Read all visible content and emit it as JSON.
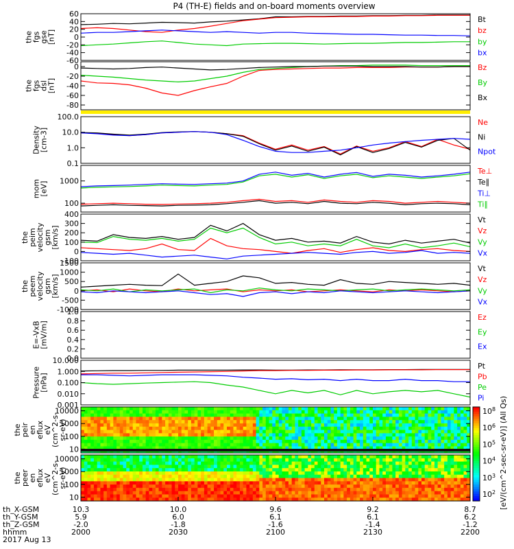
{
  "title": "P4 (TH-E) fields and on-board moments overview",
  "date_label": "2017 Aug 13",
  "footer": {
    "row_labels": [
      "th_X-GSM",
      "th_Y-GSM",
      "th_Z-GSM",
      "hhmm"
    ],
    "columns": [
      {
        "x": "10.3",
        "y": "5.9",
        "z": "-2.0",
        "t": "2000"
      },
      {
        "x": "10.0",
        "y": "6.0",
        "z": "-1.8",
        "t": "2030"
      },
      {
        "x": "9.6",
        "y": "6.1",
        "z": "-1.6",
        "t": "2100"
      },
      {
        "x": "9.2",
        "y": "6.1",
        "z": "-1.4",
        "t": "2130"
      },
      {
        "x": "8.7",
        "y": "6.2",
        "z": "-1.2",
        "t": "2200"
      }
    ]
  },
  "colorbar": {
    "label": "[eV/(cm^2-sec-sr-eV)] (All Qs)",
    "ticks": [
      "10^8",
      "10^6",
      "10^5",
      "10^4",
      "10^3",
      "10^2"
    ]
  },
  "chart_data": [
    {
      "id": "fgs_gse",
      "type": "line",
      "ylabel": [
        "the",
        "fgs",
        "gse",
        "[nT]"
      ],
      "ylim": [
        -60,
        60
      ],
      "yticks": [
        "60",
        "40",
        "20",
        "0",
        "-20",
        "-40",
        "-60"
      ],
      "series": [
        {
          "name": "Bt",
          "color": "#000000",
          "values": [
            32,
            33,
            35,
            34,
            36,
            38,
            37,
            36,
            39,
            41,
            44,
            47,
            52,
            52,
            53,
            53,
            54,
            54,
            55,
            55,
            56,
            56,
            57,
            57,
            57
          ]
        },
        {
          "name": "bz",
          "color": "#ff0000",
          "values": [
            22,
            24,
            22,
            18,
            14,
            12,
            18,
            22,
            28,
            35,
            42,
            46,
            50,
            51,
            52,
            52,
            53,
            53,
            54,
            54,
            55,
            55,
            56,
            56,
            56
          ]
        },
        {
          "name": "by",
          "color": "#00cc00",
          "values": [
            -22,
            -20,
            -18,
            -15,
            -12,
            -10,
            -14,
            -18,
            -20,
            -22,
            -18,
            -17,
            -16,
            -16,
            -17,
            -18,
            -17,
            -16,
            -16,
            -15,
            -14,
            -14,
            -13,
            -12,
            -12
          ]
        },
        {
          "name": "bx",
          "color": "#0000ff",
          "values": [
            10,
            12,
            12,
            14,
            16,
            18,
            16,
            14,
            12,
            14,
            12,
            10,
            12,
            12,
            10,
            9,
            8,
            7,
            7,
            6,
            5,
            5,
            4,
            4,
            3
          ]
        }
      ]
    },
    {
      "id": "fgs_gsm",
      "type": "line",
      "ylabel": [
        "the",
        "fgs",
        "dsl",
        "[nT]"
      ],
      "ylim": [
        -90,
        10
      ],
      "yticks": [
        "0",
        "-20",
        "-40",
        "-60",
        "-80"
      ],
      "series": [
        {
          "name": "Bz",
          "color": "#ff0000",
          "values": [
            -30,
            -34,
            -35,
            -38,
            -45,
            -55,
            -60,
            -50,
            -42,
            -35,
            -20,
            -8,
            -6,
            -5,
            -4,
            -3,
            -3,
            -2,
            -2,
            -2,
            -1,
            -1,
            -1,
            0,
            0
          ]
        },
        {
          "name": "By",
          "color": "#00cc00",
          "values": [
            -18,
            -20,
            -22,
            -25,
            -28,
            -30,
            -32,
            -30,
            -25,
            -20,
            -12,
            -6,
            -4,
            -2,
            0,
            1,
            2,
            2,
            3,
            3,
            3,
            2,
            2,
            2,
            2
          ]
        },
        {
          "name": "Bx",
          "color": "#000000",
          "values": [
            -3,
            -4,
            -5,
            -4,
            -2,
            -1,
            -3,
            -5,
            -7,
            -6,
            -4,
            -2,
            -1,
            0,
            0,
            1,
            1,
            1,
            0,
            0,
            0,
            -1,
            -1,
            0,
            0
          ]
        }
      ]
    },
    {
      "id": "density",
      "type": "line",
      "scale": "log",
      "ylabel": [
        "Density",
        "[cm-3]"
      ],
      "ylim": [
        0.1,
        100
      ],
      "yticks": [
        "100.0",
        "10.0",
        "1.0",
        "0.1"
      ],
      "series": [
        {
          "name": "Ne",
          "color": "#ff0000",
          "values": [
            9,
            8.5,
            7,
            6,
            7,
            9,
            10,
            11,
            10,
            8,
            6,
            2,
            0.8,
            1.5,
            0.7,
            1.2,
            0.4,
            1.3,
            0.6,
            1.0,
            2.5,
            1.2,
            3.5,
            1.5,
            0.8
          ]
        },
        {
          "name": "Ni",
          "color": "#000000",
          "values": [
            9.5,
            9,
            7.5,
            6.5,
            7.5,
            9.5,
            10.5,
            11,
            10,
            8,
            5.5,
            1.8,
            0.7,
            1.3,
            0.6,
            1.1,
            0.35,
            1.2,
            0.5,
            0.9,
            2.2,
            1.1,
            3,
            4,
            0.7
          ]
        },
        {
          "name": "Npot",
          "color": "#0000ff",
          "values": [
            9,
            8,
            6.5,
            6,
            7,
            9,
            10,
            11,
            10,
            7,
            3,
            1.2,
            0.6,
            0.5,
            0.5,
            0.6,
            0.7,
            1.0,
            1.5,
            2,
            2.5,
            3,
            3.5,
            4,
            3.5
          ]
        }
      ]
    },
    {
      "id": "temperature",
      "type": "line",
      "scale": "log",
      "ylabel": [
        "mom",
        "[eV]"
      ],
      "ylim": [
        40,
        5000
      ],
      "yticks": [
        "1000",
        "100"
      ],
      "series": [
        {
          "name": "Te⊥",
          "color": "#ff0000",
          "values": [
            90,
            95,
            100,
            95,
            90,
            88,
            92,
            95,
            100,
            110,
            130,
            150,
            120,
            130,
            110,
            140,
            120,
            110,
            130,
            120,
            100,
            110,
            120,
            110,
            100
          ]
        },
        {
          "name": "Te∥",
          "color": "#000000",
          "values": [
            75,
            80,
            85,
            80,
            78,
            75,
            80,
            82,
            85,
            95,
            110,
            130,
            100,
            110,
            95,
            120,
            100,
            95,
            110,
            100,
            85,
            95,
            100,
            95,
            85
          ]
        },
        {
          "name": "Ti⊥",
          "color": "#0000ff",
          "values": [
            550,
            600,
            620,
            650,
            700,
            750,
            720,
            700,
            750,
            800,
            1000,
            2000,
            2500,
            1800,
            2200,
            1500,
            2000,
            2400,
            1600,
            2000,
            1800,
            1500,
            1700,
            2000,
            2500
          ]
        },
        {
          "name": "Ti∥",
          "color": "#00cc00",
          "values": [
            480,
            520,
            540,
            560,
            600,
            650,
            620,
            600,
            650,
            700,
            900,
            1700,
            2000,
            1500,
            1900,
            1300,
            1700,
            2000,
            1400,
            1700,
            1500,
            1300,
            1500,
            1700,
            2100
          ]
        }
      ]
    },
    {
      "id": "peim_velocity",
      "type": "line",
      "ylabel": [
        "the",
        "peim",
        "velocity",
        "gsm",
        "[km/s]"
      ],
      "ylim": [
        -100,
        400
      ],
      "yticks": [
        "400",
        "300",
        "200",
        "100",
        "0",
        "-100"
      ],
      "series": [
        {
          "name": "Vt",
          "color": "#000000",
          "values": [
            120,
            110,
            180,
            150,
            140,
            160,
            130,
            150,
            280,
            220,
            300,
            180,
            120,
            140,
            100,
            110,
            90,
            160,
            100,
            80,
            120,
            90,
            110,
            130,
            90
          ]
        },
        {
          "name": "Vz",
          "color": "#ff0000",
          "values": [
            40,
            30,
            20,
            10,
            30,
            80,
            20,
            10,
            140,
            60,
            30,
            20,
            0,
            -20,
            10,
            30,
            -10,
            20,
            40,
            10,
            0,
            20,
            30,
            10,
            0
          ]
        },
        {
          "name": "Vy",
          "color": "#00cc00",
          "values": [
            100,
            95,
            160,
            130,
            120,
            140,
            110,
            130,
            250,
            200,
            250,
            150,
            80,
            100,
            60,
            80,
            60,
            130,
            60,
            40,
            80,
            40,
            60,
            90,
            50
          ]
        },
        {
          "name": "Vx",
          "color": "#0000ff",
          "values": [
            -10,
            -20,
            -30,
            -20,
            -40,
            -60,
            -50,
            -40,
            -60,
            -80,
            -50,
            -40,
            -30,
            -20,
            -10,
            -20,
            -30,
            -10,
            0,
            -20,
            -10,
            10,
            -20,
            -10,
            -20
          ]
        }
      ]
    },
    {
      "id": "peem_velocity",
      "type": "line",
      "ylabel": [
        "the",
        "peem",
        "velocity",
        "gsm",
        "[km/s]"
      ],
      "ylim": [
        -1000,
        1500
      ],
      "yticks": [
        "1500",
        "1000",
        "500",
        "0",
        "-500",
        "-1000"
      ],
      "series": [
        {
          "name": "Vt",
          "color": "#000000",
          "values": [
            200,
            250,
            300,
            350,
            300,
            280,
            900,
            300,
            400,
            500,
            800,
            700,
            400,
            450,
            350,
            300,
            600,
            400,
            350,
            500,
            450,
            400,
            350,
            400,
            300
          ]
        },
        {
          "name": "Vz",
          "color": "#ff0000",
          "values": [
            0,
            50,
            -50,
            100,
            0,
            -50,
            100,
            0,
            50,
            100,
            -50,
            50,
            0,
            50,
            -50,
            0,
            50,
            0,
            -50,
            50,
            0,
            50,
            0,
            -50,
            0
          ]
        },
        {
          "name": "Vy",
          "color": "#00cc00",
          "values": [
            50,
            0,
            100,
            -50,
            50,
            0,
            50,
            100,
            -100,
            50,
            0,
            150,
            50,
            0,
            100,
            50,
            0,
            50,
            100,
            0,
            50,
            100,
            50,
            0,
            50
          ]
        },
        {
          "name": "Vx",
          "color": "#0000ff",
          "values": [
            -50,
            -100,
            0,
            -50,
            -100,
            -50,
            0,
            -100,
            -200,
            -150,
            -300,
            -100,
            -50,
            -150,
            -50,
            -100,
            0,
            -50,
            -100,
            -50,
            0,
            -50,
            -100,
            -50,
            0
          ]
        }
      ]
    },
    {
      "id": "efield",
      "type": "line",
      "ylabel": [
        "E=-VxB",
        "[mV/m]"
      ],
      "ylim": [
        0,
        1
      ],
      "yticks": [
        "1.0",
        "0.8",
        "0.6",
        "0.4",
        "0.2",
        "0.0"
      ],
      "series": [
        {
          "name": "Ez",
          "color": "#ff0000",
          "values": []
        },
        {
          "name": "Ey",
          "color": "#00cc00",
          "values": []
        },
        {
          "name": "Ex",
          "color": "#0000ff",
          "values": []
        }
      ]
    },
    {
      "id": "pressure",
      "type": "line",
      "scale": "log",
      "ylabel": [
        "Pressure",
        "[nPa]"
      ],
      "ylim": [
        0.001,
        10
      ],
      "yticks": [
        "10.000",
        "1.000",
        "0.100",
        "0.010",
        "0.001"
      ],
      "series": [
        {
          "name": "Pt",
          "color": "#000000",
          "values": [
            1.1,
            1.15,
            1.2,
            1.2,
            1.25,
            1.25,
            1.3,
            1.3,
            1.3,
            1.3,
            1.35,
            1.35,
            1.3,
            1.3,
            1.35,
            1.35,
            1.4,
            1.4,
            1.4,
            1.45,
            1.45,
            1.5,
            1.5,
            1.5,
            1.5
          ]
        },
        {
          "name": "Pb",
          "color": "#ff0000",
          "values": [
            0.6,
            0.65,
            0.7,
            0.7,
            0.75,
            0.8,
            0.85,
            0.9,
            0.95,
            1.0,
            1.1,
            1.2,
            1.2,
            1.25,
            1.25,
            1.3,
            1.3,
            1.35,
            1.35,
            1.4,
            1.4,
            1.4,
            1.45,
            1.45,
            1.45
          ]
        },
        {
          "name": "Pe",
          "color": "#00cc00",
          "values": [
            0.1,
            0.08,
            0.07,
            0.08,
            0.09,
            0.1,
            0.11,
            0.12,
            0.1,
            0.06,
            0.04,
            0.02,
            0.01,
            0.02,
            0.012,
            0.02,
            0.008,
            0.02,
            0.01,
            0.015,
            0.02,
            0.015,
            0.02,
            0.01,
            0.005
          ]
        },
        {
          "name": "Pi",
          "color": "#0000ff",
          "values": [
            0.5,
            0.5,
            0.45,
            0.4,
            0.45,
            0.5,
            0.5,
            0.5,
            0.45,
            0.4,
            0.3,
            0.25,
            0.2,
            0.22,
            0.18,
            0.2,
            0.15,
            0.2,
            0.15,
            0.15,
            0.2,
            0.15,
            0.15,
            0.12,
            0.12
          ]
        }
      ]
    },
    {
      "id": "peir_eflux",
      "type": "heatmap",
      "ylabel": [
        "the",
        "peir",
        "en",
        "eflux",
        "eV",
        "(cm^2-s-",
        "sr-eV)"
      ],
      "ylim": [
        5,
        20000
      ],
      "yticks": [
        "10000",
        "1000",
        "100",
        "10"
      ],
      "colorbar_ticks": [
        "10^8",
        "10^6",
        "10^5",
        "10^4",
        "10^3"
      ]
    },
    {
      "id": "peer_eflux",
      "type": "heatmap",
      "ylabel": [
        "the",
        "peer",
        "en",
        "eflux",
        "eV",
        "(cm^2-s-",
        "sr-eV)"
      ],
      "ylim": [
        5,
        20000
      ],
      "yticks": [
        "10000",
        "1000",
        "100",
        "10"
      ],
      "colorbar_ticks": [
        "10^8",
        "10^6",
        "10^5",
        "10^4",
        "10^3",
        "10^2"
      ]
    }
  ]
}
